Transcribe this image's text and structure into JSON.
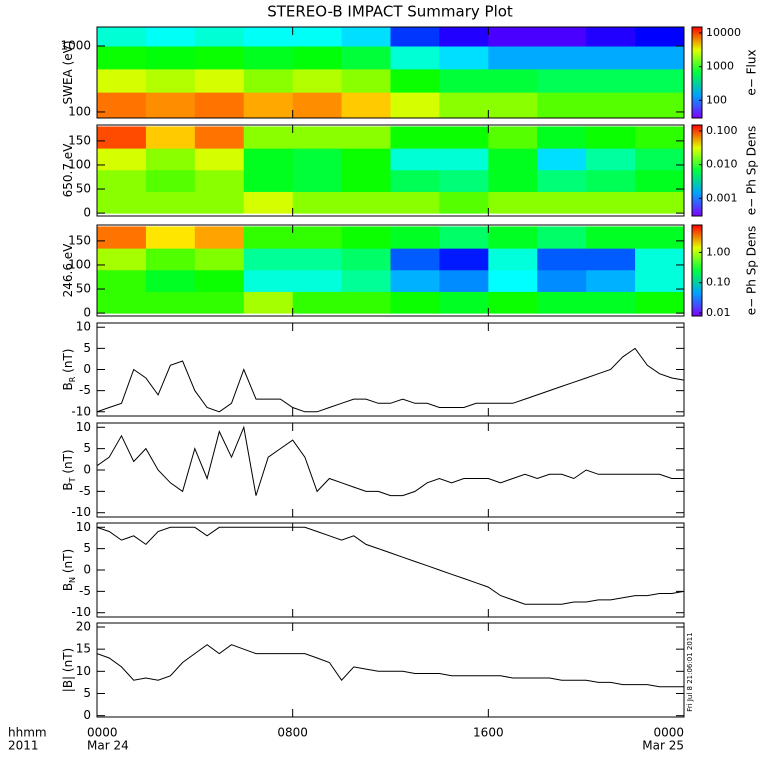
{
  "figure": {
    "title": "STEREO-B IMPACT Summary Plot",
    "xlim": [
      0,
      24
    ],
    "xticks": [
      {
        "value": 0,
        "label": "0000"
      },
      {
        "value": 8,
        "label": "0800"
      },
      {
        "value": 16,
        "label": "1600"
      },
      {
        "value": 24,
        "label": "0000"
      }
    ],
    "date_labels": [
      "Mar 24",
      "Mar 25"
    ],
    "time_label": "hhmm",
    "year_label": "2011",
    "timestamp": "Fri Jul  8 21:06:01 2011"
  },
  "chart_data": [
    {
      "type": "heatmap",
      "ylabel": "SWEA (eV)",
      "log_y": true,
      "ylim": [
        81,
        1940
      ],
      "yticks": [
        100,
        1000
      ],
      "x_bins": [
        0,
        2,
        4,
        6,
        8,
        10,
        12,
        14,
        16,
        18,
        20,
        22,
        24
      ],
      "y_bins": [
        81,
        200,
        450,
        1000,
        1940
      ],
      "values": [
        [
          8000,
          7000,
          8000,
          6000,
          7000,
          5000,
          3000,
          2000,
          2000,
          1500,
          1500,
          1500
        ],
        [
          3000,
          2500,
          3000,
          2000,
          2500,
          2000,
          1000,
          700,
          700,
          600,
          600,
          600
        ],
        [
          1000,
          900,
          1000,
          800,
          900,
          700,
          300,
          200,
          150,
          150,
          150,
          150
        ],
        [
          300,
          250,
          300,
          250,
          250,
          200,
          80,
          50,
          40,
          40,
          50,
          60
        ]
      ],
      "clim": [
        30,
        15000
      ],
      "cticks": [
        100,
        1000,
        10000
      ],
      "clabel": "e− Flux"
    },
    {
      "type": "heatmap",
      "ylabel": "650.7 eV",
      "log_y": false,
      "ylim": [
        -6,
        183
      ],
      "yticks": [
        0,
        50,
        100,
        150
      ],
      "x_bins": [
        0,
        2,
        4,
        6,
        8,
        10,
        12,
        14,
        16,
        18,
        20,
        22,
        24
      ],
      "y_bins": [
        0,
        45,
        90,
        135,
        180
      ],
      "values": [
        [
          0.02,
          0.02,
          0.02,
          0.03,
          0.02,
          0.02,
          0.02,
          0.015,
          0.02,
          0.02,
          0.02,
          0.02
        ],
        [
          0.02,
          0.015,
          0.02,
          0.008,
          0.007,
          0.01,
          0.006,
          0.005,
          0.008,
          0.005,
          0.006,
          0.008
        ],
        [
          0.03,
          0.02,
          0.03,
          0.008,
          0.007,
          0.01,
          0.003,
          0.003,
          0.008,
          0.002,
          0.004,
          0.006
        ],
        [
          0.1,
          0.05,
          0.08,
          0.02,
          0.02,
          0.02,
          0.01,
          0.01,
          0.015,
          0.008,
          0.01,
          0.012
        ]
      ],
      "clim": [
        0.0003,
        0.15
      ],
      "cticks": [
        0.001,
        {
          "value": 0.01,
          "label": "0.010"
        },
        {
          "value": 0.1,
          "label": "0.100"
        }
      ],
      "clabel": "e− Ph Sp Dens"
    },
    {
      "type": "heatmap",
      "ylabel": "246.6 eV",
      "log_y": false,
      "ylim": [
        -6,
        183
      ],
      "yticks": [
        0,
        50,
        100,
        150
      ],
      "x_bins": [
        0,
        2,
        4,
        6,
        8,
        10,
        12,
        14,
        16,
        18,
        20,
        22,
        24
      ],
      "y_bins": [
        0,
        45,
        90,
        135,
        180
      ],
      "values": [
        [
          0.5,
          0.5,
          0.5,
          1,
          0.5,
          0.5,
          0.4,
          0.3,
          0.4,
          0.3,
          0.3,
          0.4
        ],
        [
          0.5,
          0.3,
          0.4,
          0.1,
          0.1,
          0.15,
          0.05,
          0.04,
          0.08,
          0.04,
          0.05,
          0.1
        ],
        [
          1,
          0.6,
          0.8,
          0.15,
          0.15,
          0.2,
          0.03,
          0.02,
          0.1,
          0.03,
          0.03,
          0.1
        ],
        [
          4,
          2,
          3,
          0.5,
          0.5,
          0.4,
          0.3,
          0.2,
          0.3,
          0.2,
          0.3,
          0.3
        ]
      ],
      "clim": [
        0.008,
        8
      ],
      "cticks": [
        0.01,
        {
          "value": 0.1,
          "label": "0.10"
        },
        {
          "value": 1,
          "label": "1.00"
        }
      ],
      "clabel": "e− Ph Sp Dens"
    },
    {
      "type": "line",
      "ylabel": "B",
      "ylabel_sub": "R",
      "ylabel_unit": " (nT)",
      "ylim": [
        -11,
        11
      ],
      "yticks": [
        -10,
        -5,
        0,
        5,
        10
      ],
      "color": "#000000",
      "x": [
        0,
        0.5,
        1,
        1.5,
        2,
        2.5,
        3,
        3.5,
        4,
        4.5,
        5,
        5.5,
        6,
        6.5,
        7,
        7.5,
        8,
        8.5,
        9,
        9.5,
        10,
        10.5,
        11,
        11.5,
        12,
        12.5,
        13,
        13.5,
        14,
        14.5,
        15,
        15.5,
        16,
        16.5,
        17,
        17.5,
        18,
        18.5,
        19,
        19.5,
        20,
        20.5,
        21,
        21.5,
        22,
        22.5,
        23,
        23.5,
        24
      ],
      "values": [
        -10,
        -9,
        -8,
        0,
        -2,
        -6,
        1,
        2,
        -5,
        -9,
        -10,
        -8,
        0,
        -7,
        -7,
        -7,
        -9,
        -10,
        -10,
        -9,
        -8,
        -7,
        -7,
        -8,
        -8,
        -7,
        -8,
        -8,
        -9,
        -9,
        -9,
        -8,
        -8,
        -8,
        -8,
        -7,
        -6,
        -5,
        -4,
        -3,
        -2,
        -1,
        0,
        3,
        5,
        1,
        -1,
        -2,
        -2.5
      ]
    },
    {
      "type": "line",
      "ylabel": "B",
      "ylabel_sub": "T",
      "ylabel_unit": " (nT)",
      "ylim": [
        -11,
        11
      ],
      "yticks": [
        -10,
        -5,
        0,
        5,
        10
      ],
      "color": "#000000",
      "x": [
        0,
        0.5,
        1,
        1.5,
        2,
        2.5,
        3,
        3.5,
        4,
        4.5,
        5,
        5.5,
        6,
        6.5,
        7,
        7.5,
        8,
        8.5,
        9,
        9.5,
        10,
        10.5,
        11,
        11.5,
        12,
        12.5,
        13,
        13.5,
        14,
        14.5,
        15,
        15.5,
        16,
        16.5,
        17,
        17.5,
        18,
        18.5,
        19,
        19.5,
        20,
        20.5,
        21,
        21.5,
        22,
        22.5,
        23,
        23.5,
        24
      ],
      "values": [
        1,
        3,
        8,
        2,
        5,
        0,
        -3,
        -5,
        5,
        -2,
        9,
        3,
        10,
        -6,
        3,
        5,
        7,
        3,
        -5,
        -2,
        -3,
        -4,
        -5,
        -5,
        -6,
        -6,
        -5,
        -3,
        -2,
        -3,
        -2,
        -2,
        -2,
        -3,
        -2,
        -1,
        -2,
        -1,
        -1,
        -2,
        0,
        -1,
        -1,
        -1,
        -1,
        -1,
        -1,
        -2,
        -2
      ]
    },
    {
      "type": "line",
      "ylabel": "B",
      "ylabel_sub": "N",
      "ylabel_unit": " (nT)",
      "ylim": [
        -11,
        11
      ],
      "yticks": [
        -10,
        -5,
        0,
        5,
        10
      ],
      "color": "#000000",
      "x": [
        0,
        0.5,
        1,
        1.5,
        2,
        2.5,
        3,
        3.5,
        4,
        4.5,
        5,
        5.5,
        6,
        6.5,
        7,
        7.5,
        8,
        8.5,
        9,
        9.5,
        10,
        10.5,
        11,
        11.5,
        12,
        12.5,
        13,
        13.5,
        14,
        14.5,
        15,
        15.5,
        16,
        16.5,
        17,
        17.5,
        18,
        18.5,
        19,
        19.5,
        20,
        20.5,
        21,
        21.5,
        22,
        22.5,
        23,
        23.5,
        24
      ],
      "values": [
        10,
        9,
        7,
        8,
        6,
        9,
        10,
        10,
        10,
        8,
        10,
        10,
        10,
        10,
        10,
        10,
        10,
        10,
        9,
        8,
        7,
        8,
        6,
        5,
        4,
        3,
        2,
        1,
        0,
        -1,
        -2,
        -3,
        -4,
        -6,
        -7,
        -8,
        -8,
        -8,
        -8,
        -7.5,
        -7.5,
        -7,
        -7,
        -6.5,
        -6,
        -6,
        -5.5,
        -5.5,
        -5
      ]
    },
    {
      "type": "line",
      "ylabel": "|B|",
      "ylabel_unit": " (nT)",
      "ylim": [
        -0.3,
        20.9
      ],
      "yticks": [
        0,
        5,
        10,
        15,
        20
      ],
      "color": "#000000",
      "x": [
        0,
        0.5,
        1,
        1.5,
        2,
        2.5,
        3,
        3.5,
        4,
        4.5,
        5,
        5.5,
        6,
        6.5,
        7,
        7.5,
        8,
        8.5,
        9,
        9.5,
        10,
        10.5,
        11,
        11.5,
        12,
        12.5,
        13,
        13.5,
        14,
        14.5,
        15,
        15.5,
        16,
        16.5,
        17,
        17.5,
        18,
        18.5,
        19,
        19.5,
        20,
        20.5,
        21,
        21.5,
        22,
        22.5,
        23,
        23.5,
        24
      ],
      "values": [
        14,
        13,
        11,
        8,
        8.5,
        8,
        9,
        12,
        14,
        16,
        14,
        16,
        15,
        14,
        14,
        14,
        14,
        14,
        13,
        12,
        8,
        11,
        10.5,
        10,
        10,
        10,
        9.5,
        9.5,
        9.5,
        9,
        9,
        9,
        9,
        9,
        8.5,
        8.5,
        8.5,
        8.5,
        8,
        8,
        8,
        7.5,
        7.5,
        7,
        7,
        7,
        6.5,
        6.5,
        6.5
      ]
    }
  ]
}
